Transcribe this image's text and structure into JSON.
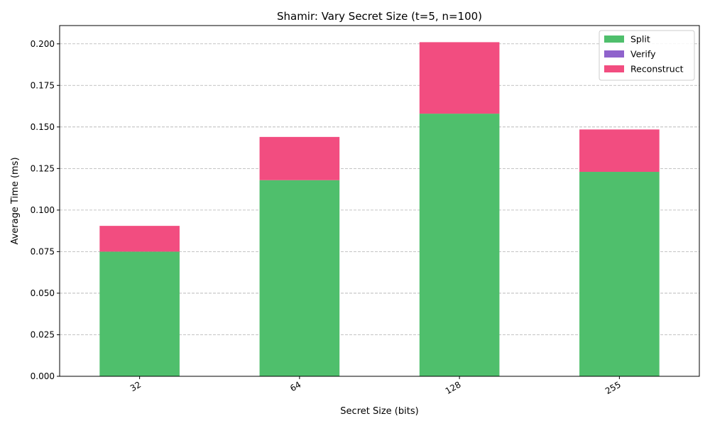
{
  "chart_data": {
    "type": "bar",
    "stacked": true,
    "title": "Shamir: Vary Secret Size (t=5, n=100)",
    "xlabel": "Secret Size (bits)",
    "ylabel": "Average Time (ms)",
    "categories": [
      "32",
      "64",
      "128",
      "255"
    ],
    "ylim": [
      0,
      0.211
    ],
    "yticks": [
      "0.000",
      "0.025",
      "0.050",
      "0.075",
      "0.100",
      "0.125",
      "0.150",
      "0.175",
      "0.200"
    ],
    "grid": true,
    "legend_position": "top-right",
    "series": [
      {
        "name": "Split",
        "color": "#4fbf6c",
        "values": [
          0.075,
          0.118,
          0.158,
          0.123
        ]
      },
      {
        "name": "Verify",
        "color": "#8f63cc",
        "values": [
          0.0,
          0.0,
          0.0,
          0.0
        ]
      },
      {
        "name": "Reconstruct",
        "color": "#f24d80",
        "values": [
          0.0155,
          0.026,
          0.043,
          0.0255
        ]
      }
    ]
  }
}
